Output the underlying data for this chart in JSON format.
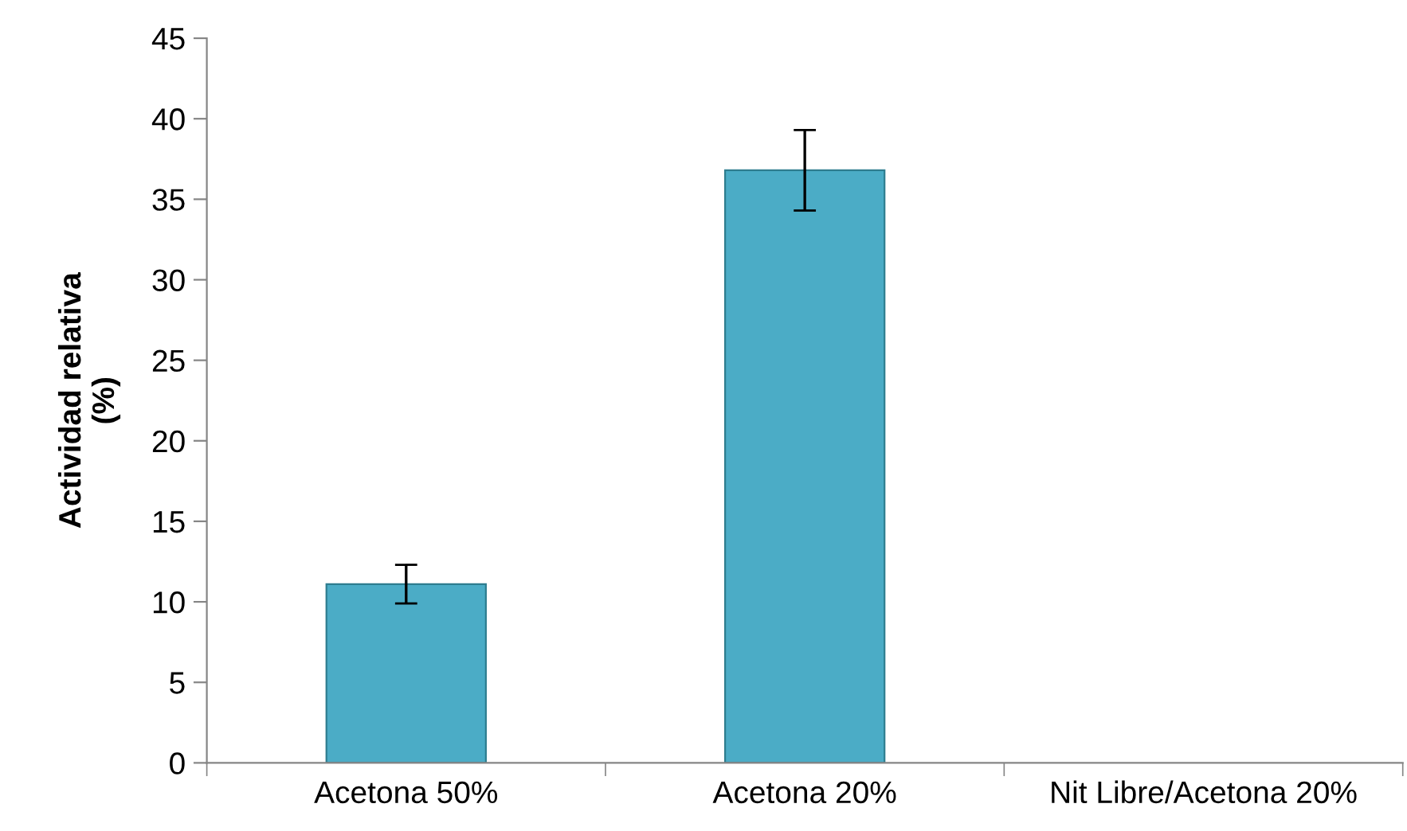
{
  "chart_data": {
    "type": "bar",
    "ylabel": "Actividad relativa\n(%)",
    "categories": [
      "Acetona 50%",
      "Acetona 20%",
      "Nit Libre/Acetona 20%"
    ],
    "values": [
      11.1,
      36.8,
      null
    ],
    "errors": [
      1.2,
      2.5,
      null
    ],
    "color": "#4bacc6",
    "ylim": [
      0,
      45
    ],
    "yticks": [
      0,
      5,
      10,
      15,
      20,
      25,
      30,
      35,
      40,
      45
    ],
    "grid": false
  }
}
